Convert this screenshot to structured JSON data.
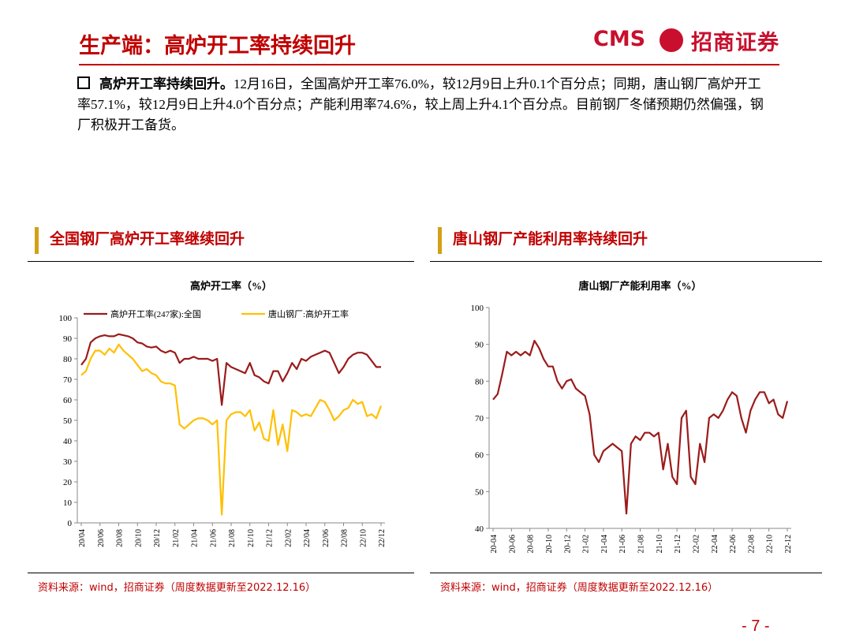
{
  "header": {
    "title": "生产端：高炉开工率持续回升",
    "logo_text": "CMS",
    "logo_name": "招商证券"
  },
  "bullet": {
    "lead": "高炉开工率持续回升。",
    "text": "12月16日，全国高炉开工率76.0%，较12月9日上升0.1个百分点；同期，唐山钢厂高炉开工率57.1%，较12月9日上升4.0个百分点；产能利用率74.6%，较上周上升4.1个百分点。目前钢厂冬储预期仍然偏强，钢厂积极开工备货。"
  },
  "panels": [
    {
      "title": "全国钢厂高炉开工率继续回升",
      "source": "资料来源：wind，招商证券（周度数据更新至2022.12.16）"
    },
    {
      "title": "唐山钢厂产能利用率持续回升",
      "source": "资料来源：wind，招商证券（周度数据更新至2022.12.16）"
    }
  ],
  "chart_data": [
    {
      "type": "line",
      "title": "高炉开工率（%）",
      "legend": "top",
      "categories": [
        "20/04",
        null,
        null,
        null,
        "20/06",
        null,
        null,
        null,
        "20/08",
        null,
        null,
        null,
        "20/10",
        null,
        null,
        null,
        "20/12",
        null,
        null,
        null,
        "21/02",
        null,
        null,
        null,
        "21/04",
        null,
        null,
        null,
        "21/06",
        null,
        null,
        null,
        "21/08",
        null,
        null,
        null,
        "21/10",
        null,
        null,
        null,
        "21/12",
        null,
        null,
        null,
        "22/02",
        null,
        null,
        null,
        "22/04",
        null,
        null,
        null,
        "22/06",
        null,
        null,
        null,
        "22/08",
        null,
        null,
        null,
        "22/10",
        null,
        null,
        null,
        "22/12"
      ],
      "series": [
        {
          "name": "高炉开工率(247家):全国",
          "color": "#9B1B1B",
          "values": [
            77,
            80,
            88,
            90,
            91,
            91.5,
            91,
            91,
            92,
            91.5,
            91,
            90,
            88,
            87.5,
            86,
            85.5,
            86,
            84,
            83,
            84,
            83,
            78,
            80,
            80,
            81,
            80,
            80,
            80,
            79,
            80,
            57.5,
            78,
            76,
            75,
            74,
            73,
            78,
            72,
            71,
            69,
            68,
            74,
            74,
            69,
            73,
            78,
            75,
            80,
            79,
            81,
            82,
            83,
            84,
            83,
            78,
            73,
            76,
            80,
            82,
            83,
            83,
            82,
            79,
            76,
            76
          ]
        },
        {
          "name": "唐山钢厂:高炉开工率",
          "color": "#FFC000",
          "values": [
            72,
            74,
            80,
            84,
            84,
            82,
            85,
            83,
            87,
            84,
            82,
            80,
            77,
            74,
            75,
            73,
            72,
            69,
            68,
            68,
            67,
            48,
            46,
            48,
            50,
            51,
            51,
            50,
            48,
            50,
            4,
            50,
            53,
            54,
            54,
            52,
            55,
            45,
            49,
            41,
            40,
            55,
            38,
            48,
            35,
            55,
            54,
            52,
            53,
            52,
            56,
            60,
            59,
            55,
            50,
            52,
            55,
            56,
            60,
            58,
            59,
            52,
            53,
            51,
            57.1
          ]
        }
      ],
      "ylim": [
        0,
        100
      ],
      "yticks": [
        0,
        10,
        20,
        30,
        40,
        50,
        60,
        70,
        80,
        90,
        100
      ]
    },
    {
      "type": "line",
      "title": "唐山钢厂产能利用率（%）",
      "categories": [
        "20-04",
        null,
        null,
        null,
        "20-06",
        null,
        null,
        null,
        "20-08",
        null,
        null,
        null,
        "20-10",
        null,
        null,
        null,
        "20-12",
        null,
        null,
        null,
        "21-02",
        null,
        null,
        null,
        "21-04",
        null,
        null,
        null,
        "21-06",
        null,
        null,
        null,
        "21-08",
        null,
        null,
        null,
        "21-10",
        null,
        null,
        null,
        "21-12",
        null,
        null,
        null,
        "22-02",
        null,
        null,
        null,
        "22-04",
        null,
        null,
        null,
        "22-06",
        null,
        null,
        null,
        "22-08",
        null,
        null,
        null,
        "22-10",
        null,
        null,
        null,
        "22-12"
      ],
      "series": [
        {
          "color": "#9B1B1B",
          "values": [
            75,
            76.5,
            82,
            88,
            87,
            88,
            87,
            88,
            87,
            91,
            89,
            86,
            84,
            84,
            80,
            78,
            80,
            80.5,
            78,
            77,
            76,
            71,
            60,
            58,
            61,
            62,
            63,
            62,
            61,
            44,
            63,
            65,
            64,
            66,
            66,
            65,
            66,
            56,
            63,
            54,
            52,
            70,
            72,
            54,
            52,
            63,
            58,
            70,
            71,
            70,
            72,
            75,
            77,
            76,
            70,
            66,
            72,
            75,
            77,
            77,
            74,
            75,
            71,
            70,
            74.6
          ]
        }
      ],
      "ylim": [
        40,
        100
      ],
      "yticks": [
        40,
        50,
        60,
        70,
        80,
        90,
        100
      ]
    }
  ],
  "page_number": "- 7 -"
}
